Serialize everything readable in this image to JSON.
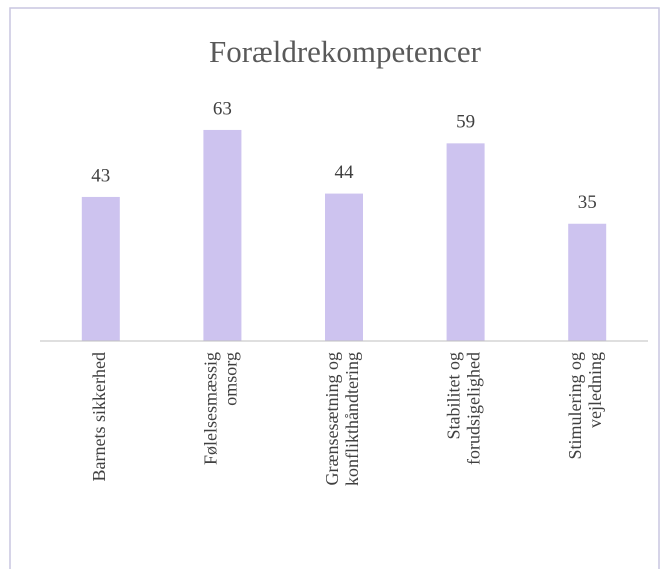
{
  "chart_data": {
    "type": "bar",
    "title": "Forældrekompetencer",
    "categories": [
      "Barnets sikkerhed",
      "Følelsesmæssig\nomsorg",
      "Grænsesætning og\nkonflikthåndtering",
      "Stabilitet og\nforudsigelighed",
      "Stimulering og\nvejledning"
    ],
    "values": [
      43,
      63,
      44,
      59,
      35
    ],
    "color": "#cdc3ef",
    "ylim": [
      0,
      70
    ],
    "grid": false
  }
}
